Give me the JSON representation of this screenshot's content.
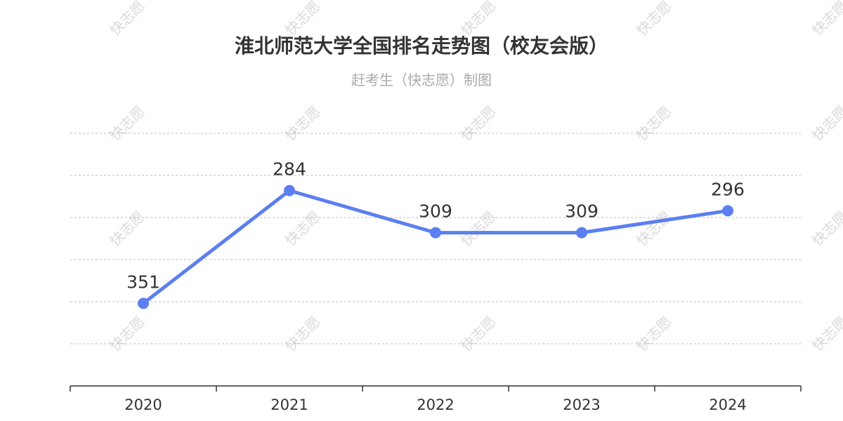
{
  "title": "淮北师范大学全国排名走势图（校友会版）",
  "subtitle": "赶考生（快志愿）制图",
  "watermark": "快志愿",
  "colors": {
    "line": "#5b7ff0",
    "grid": "#bdbdbd",
    "axis": "#333333",
    "text": "#333333"
  },
  "chart_data": {
    "type": "line",
    "categories": [
      "2020",
      "2021",
      "2022",
      "2023",
      "2024"
    ],
    "values": [
      351,
      284,
      309,
      309,
      296
    ],
    "title": "淮北师范大学全国排名走势图（校友会版）",
    "subtitle": "赶考生（快志愿）制图",
    "y_axis_inverted": true,
    "ylim": [
      250,
      400
    ],
    "grid": true,
    "y_tick_labels_shown": false
  }
}
